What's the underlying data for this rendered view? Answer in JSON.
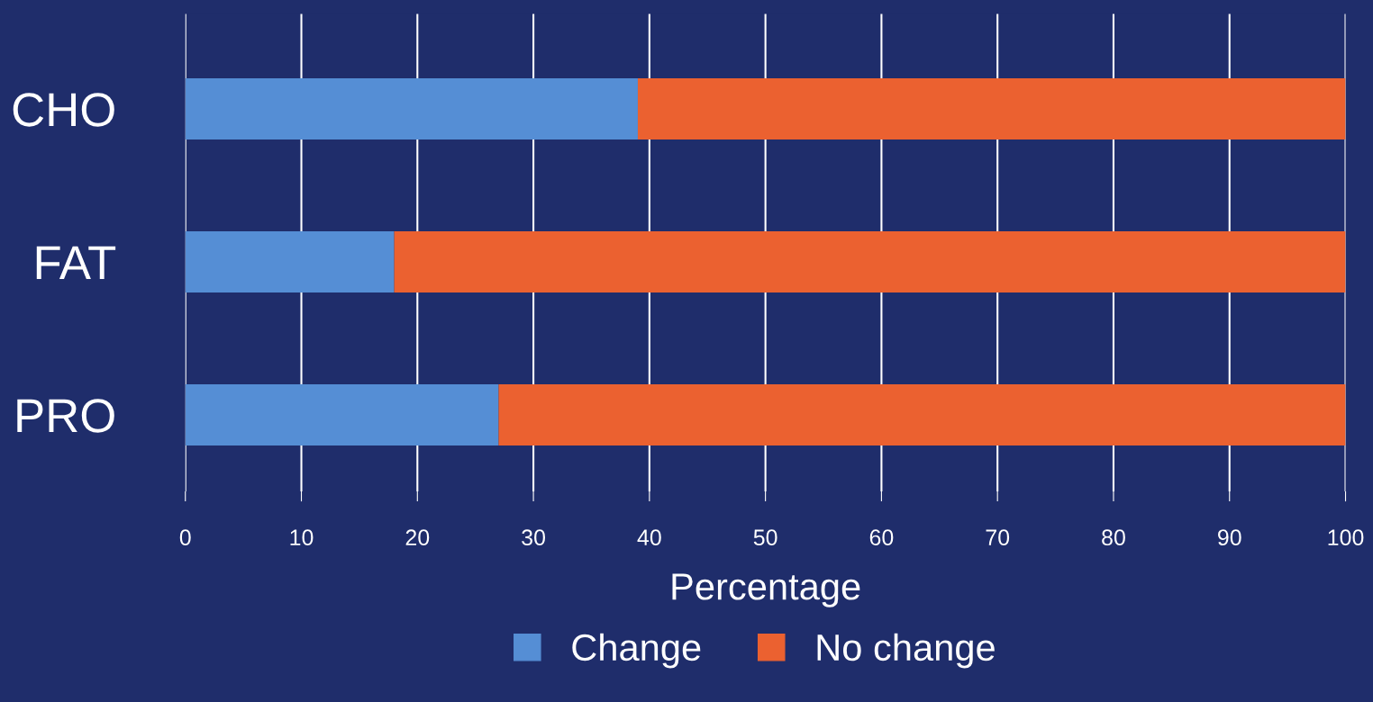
{
  "chart_data": {
    "type": "bar",
    "orientation": "horizontal",
    "stacked": true,
    "xlabel": "Percentage",
    "categories": [
      "CHO",
      "FAT",
      "PRO"
    ],
    "series": [
      {
        "name": "Change",
        "color": "#558ed5",
        "values": [
          39,
          18,
          27
        ]
      },
      {
        "name": "No change",
        "color": "#eb6130",
        "values": [
          61,
          82,
          73
        ]
      }
    ],
    "xlim": [
      0,
      100
    ],
    "xticks": [
      0,
      10,
      20,
      30,
      40,
      50,
      60,
      70,
      80,
      90,
      100
    ],
    "grid": "x",
    "legend": "bottom"
  }
}
